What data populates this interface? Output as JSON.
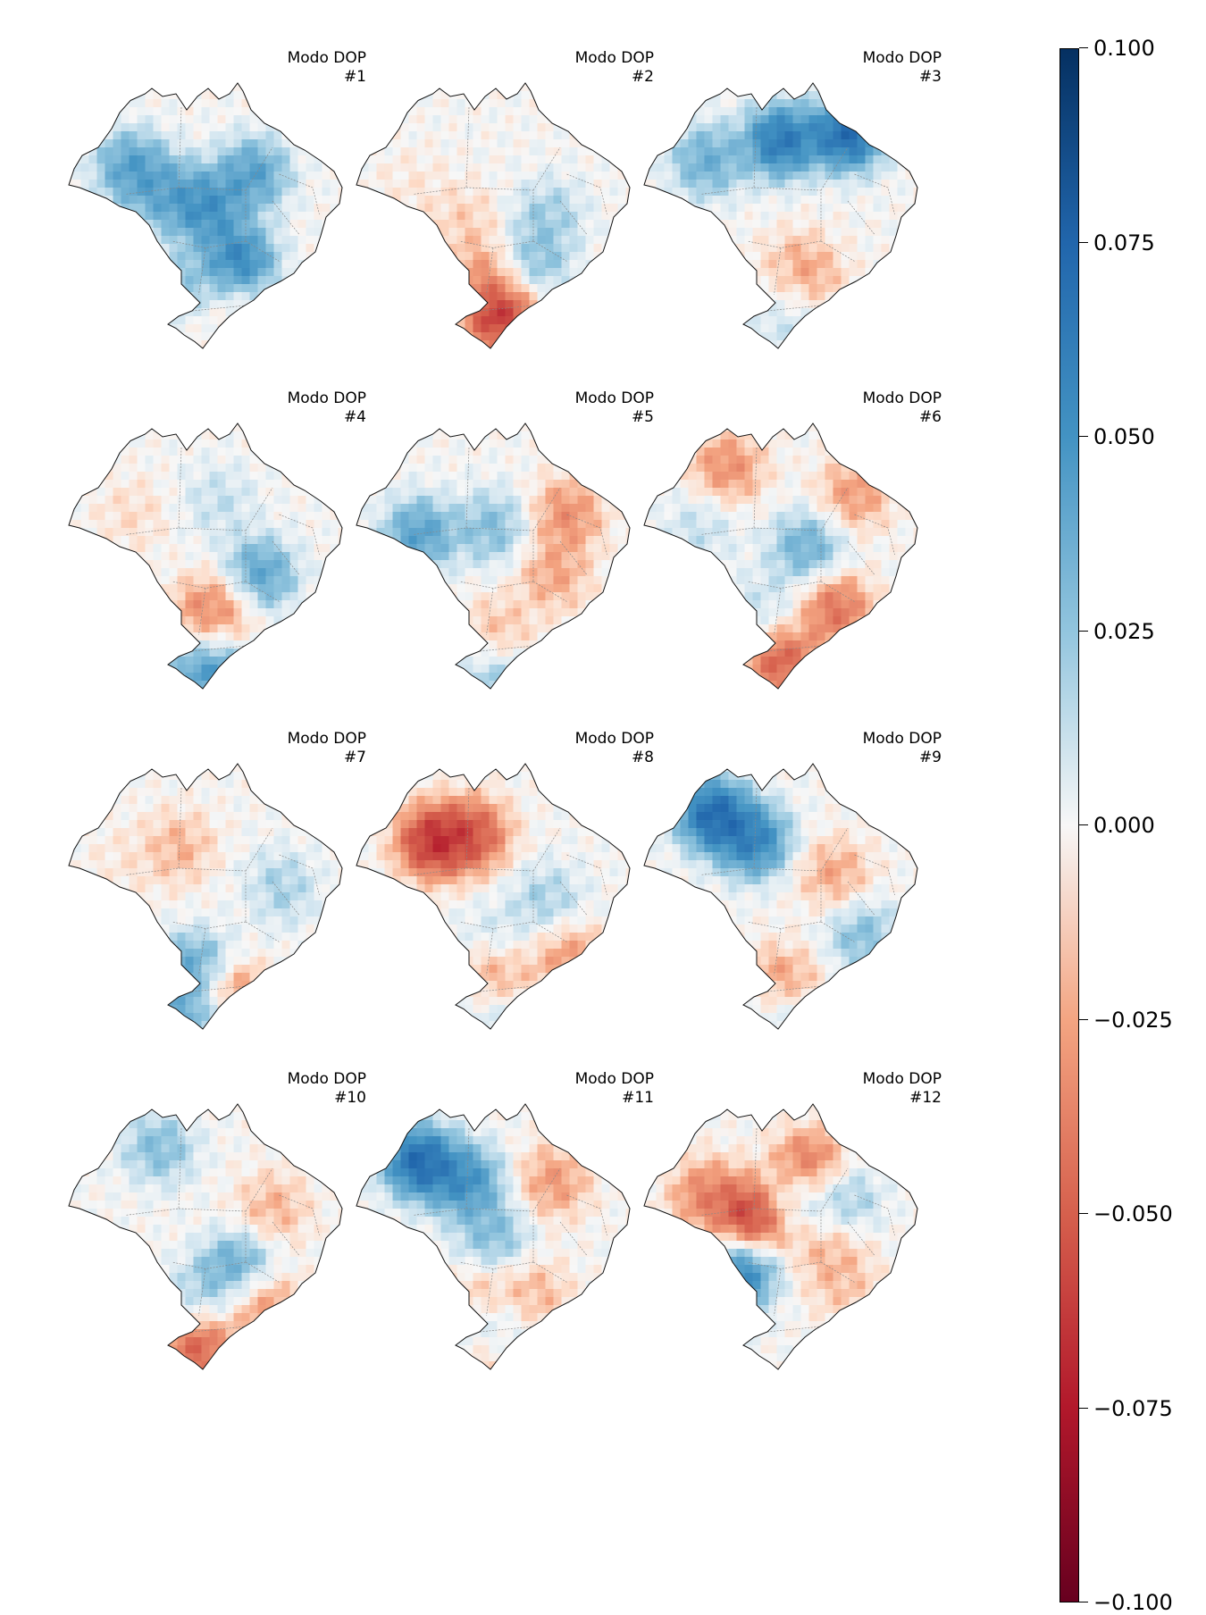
{
  "panels": [
    {
      "title": "Modo DOP",
      "number": "#1",
      "blobs": [
        [
          -0.55,
          -0.25,
          0.06
        ],
        [
          0.0,
          0.05,
          0.07
        ],
        [
          0.35,
          -0.2,
          0.06
        ],
        [
          0.25,
          0.45,
          0.08
        ],
        [
          -0.1,
          0.6,
          0.03
        ],
        [
          -0.3,
          -0.05,
          0.05
        ],
        [
          0.2,
          0.85,
          -0.01
        ]
      ]
    },
    {
      "title": "Modo DOP",
      "number": "#2",
      "blobs": [
        [
          -0.6,
          -0.1,
          -0.01
        ],
        [
          0.1,
          -0.3,
          0.0
        ],
        [
          0.4,
          0.1,
          0.03
        ],
        [
          0.3,
          0.45,
          0.04
        ],
        [
          -0.05,
          0.55,
          -0.04
        ],
        [
          0.05,
          0.85,
          -0.09
        ],
        [
          -0.2,
          0.15,
          -0.02
        ]
      ]
    },
    {
      "title": "Modo DOP",
      "number": "#3",
      "blobs": [
        [
          0.5,
          -0.5,
          0.1
        ],
        [
          0.0,
          -0.45,
          0.09
        ],
        [
          -0.55,
          -0.3,
          0.05
        ],
        [
          0.2,
          0.5,
          -0.04
        ],
        [
          0.45,
          0.25,
          0.0
        ],
        [
          -0.1,
          0.6,
          -0.01
        ],
        [
          0.0,
          0.88,
          0.02
        ]
      ]
    },
    {
      "title": "Modo DOP",
      "number": "#4",
      "blobs": [
        [
          -0.55,
          -0.2,
          -0.015
        ],
        [
          0.1,
          -0.3,
          0.02
        ],
        [
          0.4,
          0.25,
          0.06
        ],
        [
          0.1,
          0.5,
          -0.045
        ],
        [
          -0.05,
          0.65,
          -0.04
        ],
        [
          0.0,
          0.9,
          0.08
        ]
      ]
    },
    {
      "title": "Modo DOP",
      "number": "#5",
      "blobs": [
        [
          -0.55,
          -0.05,
          0.06
        ],
        [
          0.0,
          -0.1,
          0.04
        ],
        [
          0.55,
          -0.2,
          -0.045
        ],
        [
          0.45,
          0.25,
          -0.035
        ],
        [
          -0.1,
          0.65,
          0.0
        ],
        [
          0.0,
          0.75,
          -0.06
        ],
        [
          0.0,
          0.92,
          0.06
        ]
      ]
    },
    {
      "title": "Modo DOP",
      "number": "#6",
      "blobs": [
        [
          -0.4,
          -0.55,
          -0.045
        ],
        [
          0.55,
          -0.35,
          -0.04
        ],
        [
          0.2,
          0.05,
          0.05
        ],
        [
          0.4,
          0.5,
          -0.06
        ],
        [
          -0.1,
          0.5,
          0.02
        ],
        [
          0.0,
          0.88,
          -0.07
        ],
        [
          -0.6,
          -0.1,
          0.02
        ]
      ]
    },
    {
      "title": "Modo DOP",
      "number": "#7",
      "blobs": [
        [
          -0.2,
          -0.25,
          -0.03
        ],
        [
          0.55,
          0.05,
          0.03
        ],
        [
          0.2,
          0.15,
          0.0
        ],
        [
          -0.05,
          0.65,
          0.06
        ],
        [
          0.15,
          0.85,
          -0.07
        ],
        [
          -0.05,
          0.95,
          0.07
        ],
        [
          -0.6,
          -0.15,
          -0.01
        ]
      ]
    },
    {
      "title": "Modo DOP",
      "number": "#8",
      "blobs": [
        [
          -0.45,
          -0.3,
          -0.09
        ],
        [
          -0.15,
          -0.35,
          -0.07
        ],
        [
          0.4,
          0.15,
          0.03
        ],
        [
          0.55,
          0.55,
          -0.04
        ],
        [
          0.0,
          0.45,
          0.02
        ],
        [
          0.0,
          0.72,
          -0.06
        ],
        [
          0.0,
          0.92,
          0.03
        ]
      ]
    },
    {
      "title": "Modo DOP",
      "number": "#9",
      "blobs": [
        [
          -0.5,
          -0.5,
          0.1
        ],
        [
          -0.2,
          -0.3,
          0.08
        ],
        [
          0.4,
          -0.05,
          -0.035
        ],
        [
          0.6,
          0.4,
          0.04
        ],
        [
          0.05,
          0.4,
          0.0
        ],
        [
          0.0,
          0.75,
          -0.06
        ],
        [
          0.0,
          0.92,
          0.03
        ]
      ]
    },
    {
      "title": "Modo DOP",
      "number": "#10",
      "blobs": [
        [
          -0.35,
          -0.55,
          0.04
        ],
        [
          -0.6,
          -0.05,
          0.0
        ],
        [
          0.5,
          -0.1,
          -0.03
        ],
        [
          0.25,
          0.35,
          0.06
        ],
        [
          0.4,
          0.6,
          -0.05
        ],
        [
          0.0,
          0.55,
          0.03
        ],
        [
          -0.05,
          0.92,
          -0.07
        ]
      ]
    },
    {
      "title": "Modo DOP",
      "number": "#11",
      "blobs": [
        [
          -0.55,
          -0.45,
          0.1
        ],
        [
          -0.2,
          -0.3,
          0.07
        ],
        [
          0.45,
          -0.3,
          -0.04
        ],
        [
          0.0,
          0.1,
          0.04
        ],
        [
          0.3,
          0.55,
          -0.03
        ],
        [
          -0.1,
          0.6,
          -0.03
        ],
        [
          0.0,
          0.85,
          0.07
        ],
        [
          0.0,
          0.95,
          -0.06
        ]
      ]
    },
    {
      "title": "Modo DOP",
      "number": "#12",
      "blobs": [
        [
          -0.55,
          -0.2,
          -0.05
        ],
        [
          -0.2,
          -0.05,
          -0.09
        ],
        [
          0.1,
          -0.2,
          0.03
        ],
        [
          -0.3,
          0.4,
          0.08
        ],
        [
          0.35,
          0.15,
          -0.03
        ],
        [
          0.2,
          -0.4,
          -0.07
        ],
        [
          0.45,
          0.45,
          -0.025
        ],
        [
          0.0,
          0.8,
          0.0
        ],
        [
          0.45,
          -0.15,
          0.04
        ]
      ]
    }
  ],
  "colorbar": {
    "min": -0.1,
    "max": 0.1,
    "colormap": "RdBu",
    "ticks": [
      {
        "value": 0.1,
        "label": "0.100"
      },
      {
        "value": 0.075,
        "label": "0.075"
      },
      {
        "value": 0.05,
        "label": "0.050"
      },
      {
        "value": 0.025,
        "label": "0.025"
      },
      {
        "value": 0.0,
        "label": "0.000"
      },
      {
        "value": -0.025,
        "label": "−0.025"
      },
      {
        "value": -0.05,
        "label": "−0.050"
      },
      {
        "value": -0.075,
        "label": "−0.075"
      },
      {
        "value": -0.1,
        "label": "−0.100"
      }
    ]
  }
}
